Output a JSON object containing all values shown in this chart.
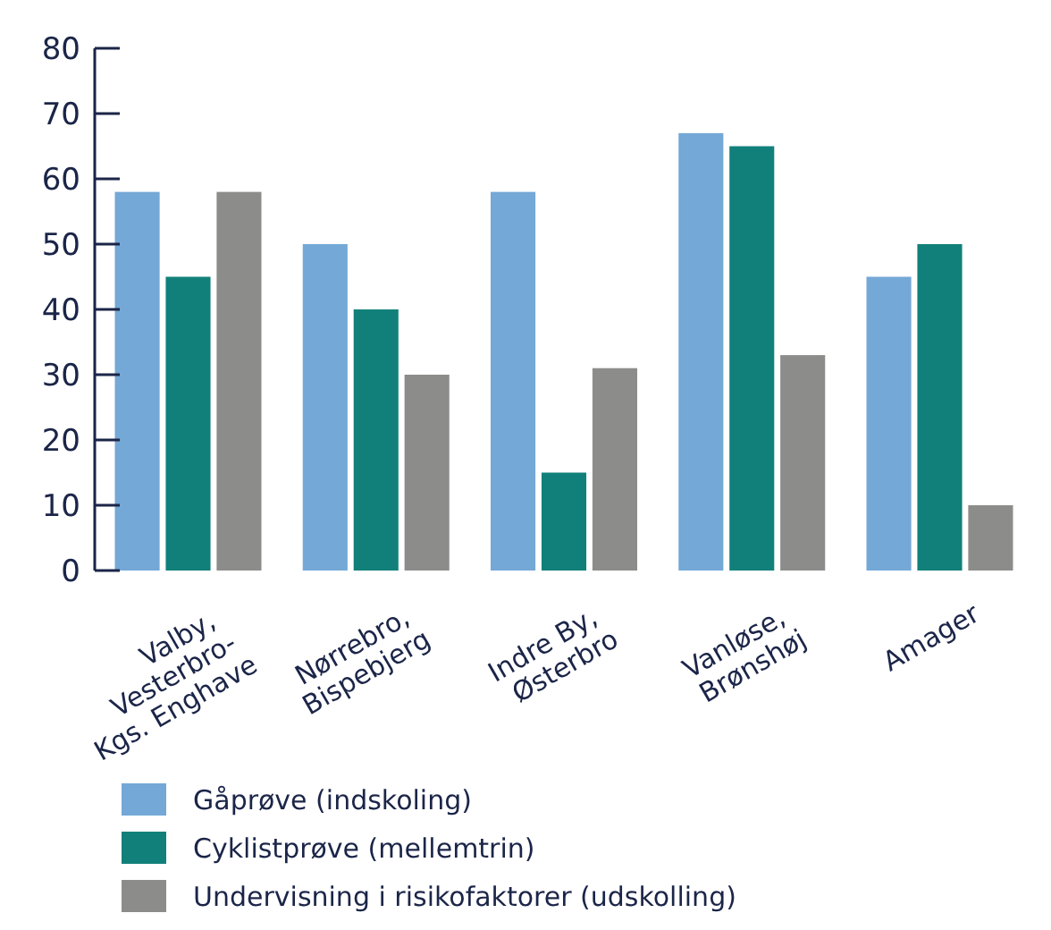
{
  "chart_data": {
    "type": "bar",
    "categories": [
      "Valby,\nVesterbro-\nKgs. Enghave",
      "Nørrebro,\nBispebjerg",
      "Indre By,\nØsterbro",
      "Vanløse,\nBrønshøj",
      "Amager"
    ],
    "series": [
      {
        "name": "Gåprøve (indskoling)",
        "color": "#74a8d6",
        "values": [
          58,
          50,
          58,
          67,
          45
        ]
      },
      {
        "name": "Cyklistprøve (mellemtrin)",
        "color": "#12807a",
        "values": [
          45,
          40,
          15,
          65,
          50
        ]
      },
      {
        "name": "Undervisning i risikofaktorer (udskolling)",
        "color": "#8c8c8a",
        "values": [
          58,
          30,
          31,
          33,
          10
        ]
      }
    ],
    "ylim": [
      0,
      80
    ],
    "yticks": [
      0,
      10,
      20,
      30,
      40,
      50,
      60,
      70,
      80
    ],
    "grid": false,
    "legend": "bottom left"
  }
}
